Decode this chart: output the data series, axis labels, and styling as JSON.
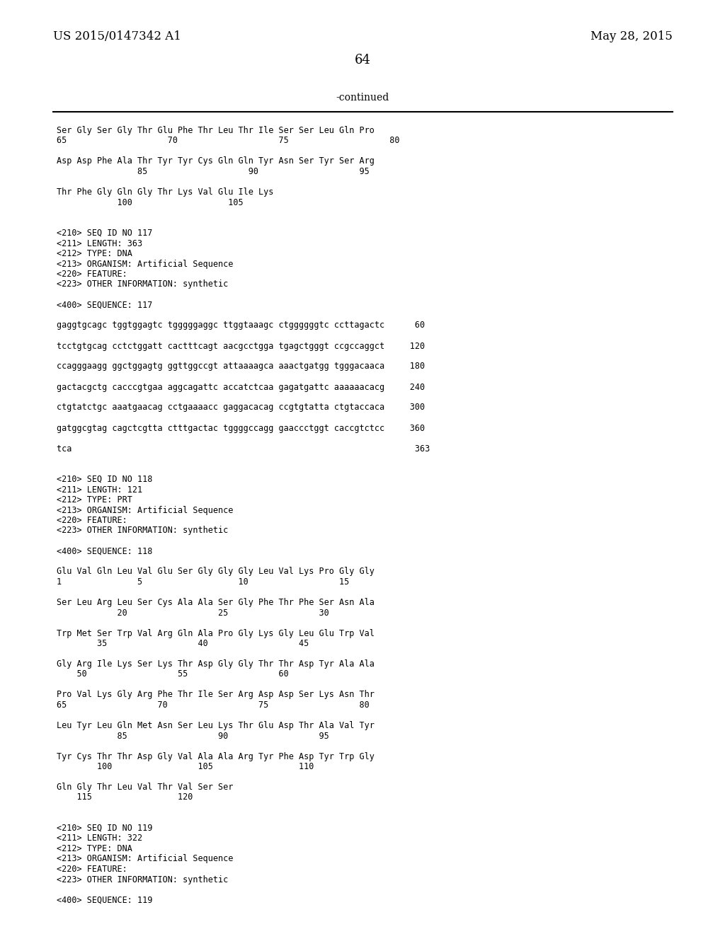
{
  "background_color": "#ffffff",
  "header_left": "US 2015/0147342 A1",
  "header_right": "May 28, 2015",
  "page_number": "64",
  "continued_label": "-continued",
  "lines": [
    "Ser Gly Ser Gly Thr Glu Phe Thr Leu Thr Ile Ser Ser Leu Gln Pro",
    "65                    70                    75                    80",
    "",
    "Asp Asp Phe Ala Thr Tyr Tyr Cys Gln Gln Tyr Asn Ser Tyr Ser Arg",
    "                85                    90                    95",
    "",
    "Thr Phe Gly Gln Gly Thr Lys Val Glu Ile Lys",
    "            100                   105",
    "",
    "",
    "<210> SEQ ID NO 117",
    "<211> LENGTH: 363",
    "<212> TYPE: DNA",
    "<213> ORGANISM: Artificial Sequence",
    "<220> FEATURE:",
    "<223> OTHER INFORMATION: synthetic",
    "",
    "<400> SEQUENCE: 117",
    "",
    "gaggtgcagc tggtggagtc tgggggaggc ttggtaaagc ctggggggtc ccttagactc      60",
    "",
    "tcctgtgcag cctctggatt cactttcagt aacgcctgga tgagctgggt ccgccaggct     120",
    "",
    "ccagggaagg ggctggagtg ggttggccgt attaaaagca aaactgatgg tgggacaaca     180",
    "",
    "gactacgctg cacccgtgaa aggcagattc accatctcaa gagatgattc aaaaaacacg     240",
    "",
    "ctgtatctgc aaatgaacag cctgaaaacc gaggacacag ccgtgtatta ctgtaccaca     300",
    "",
    "gatggcgtag cagctcgtta ctttgactac tggggccagg gaaccctggt caccgtctcc     360",
    "",
    "tca                                                                    363",
    "",
    "",
    "<210> SEQ ID NO 118",
    "<211> LENGTH: 121",
    "<212> TYPE: PRT",
    "<213> ORGANISM: Artificial Sequence",
    "<220> FEATURE:",
    "<223> OTHER INFORMATION: synthetic",
    "",
    "<400> SEQUENCE: 118",
    "",
    "Glu Val Gln Leu Val Glu Ser Gly Gly Gly Leu Val Lys Pro Gly Gly",
    "1               5                   10                  15",
    "",
    "Ser Leu Arg Leu Ser Cys Ala Ala Ser Gly Phe Thr Phe Ser Asn Ala",
    "            20                  25                  30",
    "",
    "Trp Met Ser Trp Val Arg Gln Ala Pro Gly Lys Gly Leu Glu Trp Val",
    "        35                  40                  45",
    "",
    "Gly Arg Ile Lys Ser Lys Thr Asp Gly Gly Thr Thr Asp Tyr Ala Ala",
    "    50                  55                  60",
    "",
    "Pro Val Lys Gly Arg Phe Thr Ile Ser Arg Asp Asp Ser Lys Asn Thr",
    "65                  70                  75                  80",
    "",
    "Leu Tyr Leu Gln Met Asn Ser Leu Lys Thr Glu Asp Thr Ala Val Tyr",
    "            85                  90                  95",
    "",
    "Tyr Cys Thr Thr Asp Gly Val Ala Ala Arg Tyr Phe Asp Tyr Trp Gly",
    "        100                 105                 110",
    "",
    "Gln Gly Thr Leu Val Thr Val Ser Ser",
    "    115                 120",
    "",
    "",
    "<210> SEQ ID NO 119",
    "<211> LENGTH: 322",
    "<212> TYPE: DNA",
    "<213> ORGANISM: Artificial Sequence",
    "<220> FEATURE:",
    "<223> OTHER INFORMATION: synthetic",
    "",
    "<400> SEQUENCE: 119"
  ]
}
